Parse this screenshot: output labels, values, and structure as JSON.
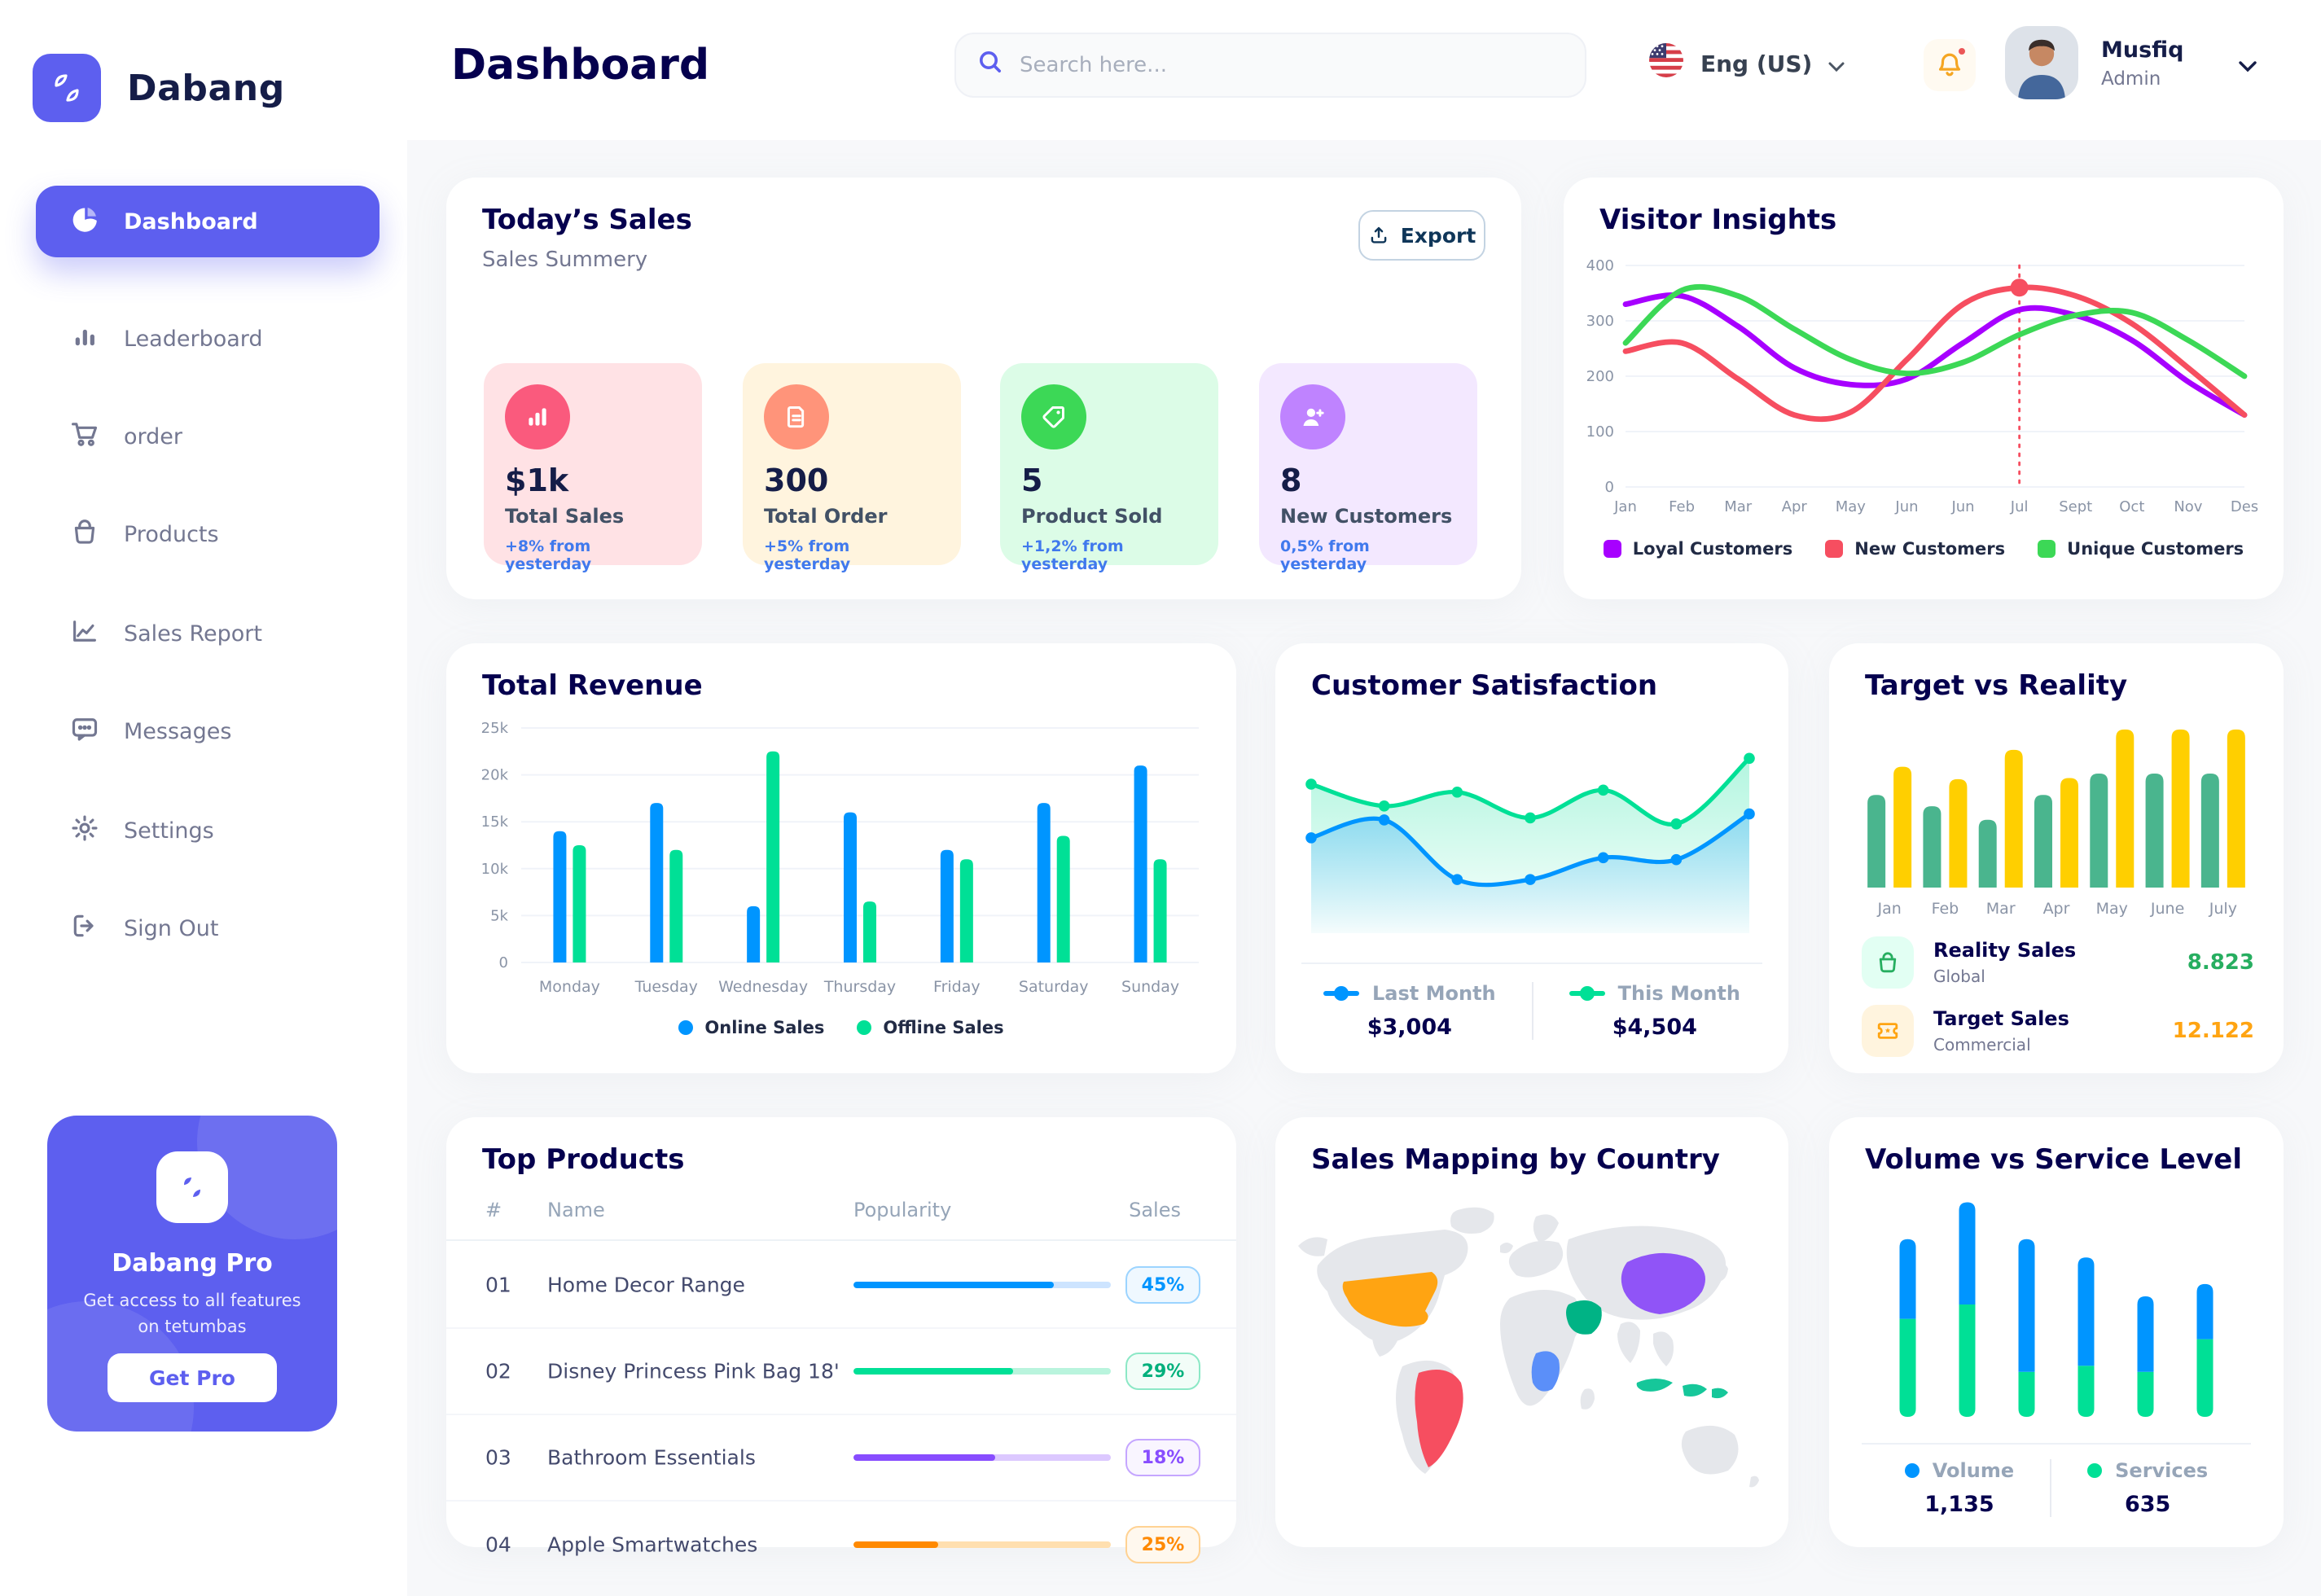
{
  "app": {
    "brand": "Dabang"
  },
  "sidebar": {
    "items": [
      {
        "label": "Dashboard",
        "active": true
      },
      {
        "label": "Leaderboard"
      },
      {
        "label": "order"
      },
      {
        "label": "Products"
      },
      {
        "label": "Sales Report"
      },
      {
        "label": "Messages"
      },
      {
        "label": "Settings"
      },
      {
        "label": "Sign Out"
      }
    ],
    "promo": {
      "title": "Dabang Pro",
      "subtitle": "Get access to all features on tetumbas",
      "cta": "Get Pro"
    }
  },
  "header": {
    "title": "Dashboard",
    "search_placeholder": "Search here...",
    "language": "Eng (US)",
    "user": {
      "name": "Musfiq",
      "role": "Admin"
    }
  },
  "today_sales": {
    "title": "Today’s Sales",
    "subtitle": "Sales Summery",
    "export_label": "Export",
    "cards": [
      {
        "value": "$1k",
        "label": "Total Sales",
        "delta": "+8% from yesterday",
        "bg": "#FFE2E5",
        "icon_bg": "#FA5A7D"
      },
      {
        "value": "300",
        "label": "Total Order",
        "delta": "+5% from yesterday",
        "bg": "#FFF4DE",
        "icon_bg": "#FF947A"
      },
      {
        "value": "5",
        "label": "Product Sold",
        "delta": "+1,2% from yesterday",
        "bg": "#DCFCE7",
        "icon_bg": "#3CD856"
      },
      {
        "value": "8",
        "label": "New Customers",
        "delta": "0,5% from yesterday",
        "bg": "#F3E8FF",
        "icon_bg": "#BF83FF"
      }
    ]
  },
  "chart_data": [
    {
      "id": "visitor_insights",
      "type": "line",
      "title": "Visitor Insights",
      "x_labels": [
        "Jan",
        "Feb",
        "Mar",
        "Apr",
        "May",
        "Jun",
        "Jun",
        "Jul",
        "Sept",
        "Oct",
        "Nov",
        "Des"
      ],
      "ylim": [
        0,
        400
      ],
      "yticks": [
        0,
        100,
        200,
        300,
        400
      ],
      "grid": true,
      "legend_position": "bottom",
      "series": [
        {
          "name": "Loyal Customers",
          "color": "#A700FF",
          "values": [
            330,
            345,
            290,
            215,
            185,
            195,
            260,
            320,
            310,
            265,
            190,
            130
          ]
        },
        {
          "name": "New Customers",
          "color": "#F64E60",
          "values": [
            245,
            260,
            195,
            130,
            135,
            230,
            330,
            360,
            345,
            295,
            215,
            130
          ]
        },
        {
          "name": "Unique Customers",
          "color": "#3CD856",
          "values": [
            260,
            355,
            345,
            285,
            230,
            205,
            225,
            275,
            310,
            315,
            265,
            200
          ]
        }
      ],
      "highlight": {
        "x_index": 7,
        "series_index": 1,
        "value": 360
      }
    },
    {
      "id": "total_revenue",
      "type": "grouped-bar",
      "title": "Total Revenue",
      "categories": [
        "Monday",
        "Tuesday",
        "Wednesday",
        "Thursday",
        "Friday",
        "Saturday",
        "Sunday"
      ],
      "ylim": [
        0,
        25
      ],
      "yticks": [
        0,
        5,
        10,
        15,
        20,
        25
      ],
      "ytick_labels": [
        "0",
        "5k",
        "10k",
        "15k",
        "20k",
        "25k"
      ],
      "grid": true,
      "legend_position": "bottom",
      "series": [
        {
          "name": "Online Sales",
          "color": "#0095FF",
          "values": [
            14,
            17,
            6,
            16,
            12,
            17,
            21
          ]
        },
        {
          "name": "Offline Sales",
          "color": "#00E096",
          "values": [
            12.5,
            12,
            22.5,
            6.5,
            11,
            13.5,
            11
          ]
        }
      ]
    },
    {
      "id": "customer_satisfaction",
      "type": "area",
      "title": "Customer Satisfaction",
      "ylim": [
        0,
        100
      ],
      "grid": false,
      "legend_position": "bottom",
      "series": [
        {
          "name": "Last Month",
          "color": "#0095FF",
          "total": "$3,004",
          "values": [
            48,
            57,
            27,
            27,
            38,
            37,
            60
          ]
        },
        {
          "name": "This Month",
          "color": "#00E096",
          "total": "$4,504",
          "values": [
            75,
            64,
            71,
            58,
            72,
            55,
            88
          ]
        }
      ]
    },
    {
      "id": "target_vs_reality",
      "type": "paired-bar",
      "title": "Target vs Reality",
      "categories": [
        "Jan",
        "Feb",
        "Mar",
        "Apr",
        "May",
        "June",
        "July"
      ],
      "ylim": [
        0,
        15
      ],
      "grid": false,
      "legend_position": "bottom",
      "series": [
        {
          "name": "Reality Sales",
          "sublabel": "Global",
          "color": "#4AB58E",
          "icon_bg": "#E2FFF3",
          "value_label": "8.823",
          "value_color": "#27AE60",
          "values": [
            8.2,
            7.2,
            6,
            8.2,
            10.1,
            10.1,
            10.1
          ]
        },
        {
          "name": "Target Sales",
          "sublabel": "Commercial",
          "color": "#FFCF00",
          "icon_bg": "#FFF4DE",
          "value_label": "12.122",
          "value_color": "#FFA412",
          "values": [
            10.7,
            9.6,
            12.2,
            9.7,
            14,
            14,
            14
          ]
        }
      ]
    },
    {
      "id": "volume_vs_service",
      "type": "stacked-bar",
      "title": "Volume vs Service Level",
      "ylim": [
        0,
        110
      ],
      "grid": false,
      "legend_position": "bottom",
      "series": [
        {
          "name": "Volume",
          "color": "#0095FF",
          "total": "1,135",
          "values": [
            39,
            50,
            65,
            53,
            37,
            27
          ]
        },
        {
          "name": "Services",
          "color": "#00E096",
          "total": "635",
          "values": [
            48,
            55,
            22,
            25,
            22,
            38
          ]
        }
      ]
    }
  ],
  "top_products": {
    "title": "Top Products",
    "headers": [
      "#",
      "Name",
      "Popularity",
      "Sales"
    ],
    "rows": [
      {
        "num": "01",
        "name": "Home Decor Range",
        "popularity": 0.78,
        "sales": "45%",
        "color": "#0095FF",
        "track": "#CDE4FF",
        "badge_text": "#0095FF",
        "badge_border": "#9CD4FF",
        "badge_bg": "#EFF8FF"
      },
      {
        "num": "02",
        "name": "Disney Princess Pink Bag 18'",
        "popularity": 0.62,
        "sales": "29%",
        "color": "#00E096",
        "track": "#B9F4DD",
        "badge_text": "#00B07C",
        "badge_border": "#8CE8C6",
        "badge_bg": "#F2FDF8"
      },
      {
        "num": "03",
        "name": "Bathroom Essentials",
        "popularity": 0.55,
        "sales": "18%",
        "color": "#884DFF",
        "track": "#DCC8FF",
        "badge_text": "#884DFF",
        "badge_border": "#C5A6FF",
        "badge_bg": "#F9F5FF"
      },
      {
        "num": "04",
        "name": "Apple Smartwatches",
        "popularity": 0.33,
        "sales": "25%",
        "color": "#FF8900",
        "track": "#FFDFAF",
        "badge_text": "#FF8900",
        "badge_border": "#FFD293",
        "badge_bg": "#FFF8EE"
      }
    ]
  },
  "sales_map": {
    "title": "Sales Mapping by Country",
    "countries": [
      {
        "name": "United States",
        "color": "#FFA412"
      },
      {
        "name": "Brazil",
        "color": "#F64E60"
      },
      {
        "name": "Saudi Arabia",
        "color": "#00B385"
      },
      {
        "name": "DR Congo",
        "color": "#5B8FF9"
      },
      {
        "name": "China",
        "color": "#9054F7"
      },
      {
        "name": "Indonesia",
        "color": "#16C79A"
      }
    ]
  }
}
